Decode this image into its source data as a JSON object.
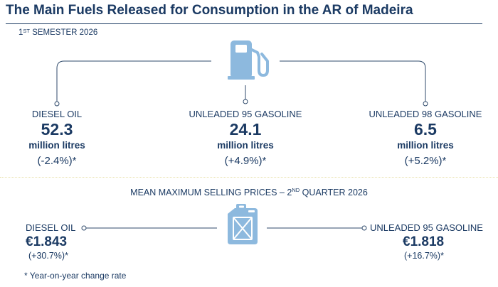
{
  "title": "The Main Fuels Released for Consumption in the AR of Madeira",
  "semester": {
    "prefix": "1",
    "sup": "ST",
    "rest": " SEMESTER 2026"
  },
  "fuels": [
    {
      "label": "DIESEL OIL",
      "value": "52.3",
      "unit": "million litres",
      "change": "(-2.4%)*"
    },
    {
      "label": "UNLEADED 95 GASOLINE",
      "value": "24.1",
      "unit": "million litres",
      "change": "(+4.9%)*"
    },
    {
      "label": "UNLEADED 98 GASOLINE",
      "value": "6.5",
      "unit": "million litres",
      "change": "(+5.2%)*"
    }
  ],
  "prices": {
    "title_prefix": "MEAN MAXIMUM SELLING PRICES – 2",
    "title_sup": "ND",
    "title_rest": " QUARTER 2026",
    "items": [
      {
        "label": "DIESEL OIL",
        "value": "€1.843",
        "change": "(+30.7%)*"
      },
      {
        "label": "UNLEADED 95 GASOLINE",
        "value": "€1.818",
        "change": "(+16.7%)*"
      }
    ]
  },
  "footnote": "* Year-on-year change rate",
  "icons": {
    "top": "fuel-pump-icon",
    "bottom": "jerry-can-icon"
  },
  "colors": {
    "navy": "#1b3a63",
    "icon_fill": "#8db9de",
    "line": "#2f4a6b"
  }
}
